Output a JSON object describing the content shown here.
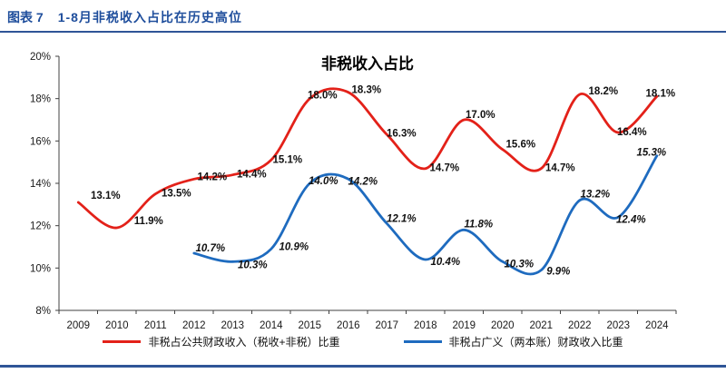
{
  "header": {
    "figure_label": "图表 7",
    "title": "1-8月非税收入占比在历史高位"
  },
  "colors": {
    "header_blue": "#1f4e9c",
    "divider_blue": "#2f5597",
    "red_series": "#e32119",
    "blue_series": "#1e6bbf",
    "axis": "#404040"
  },
  "chart_data": {
    "type": "line",
    "title": "非税收入占比",
    "x": [
      2009,
      2010,
      2011,
      2012,
      2013,
      2014,
      2015,
      2016,
      2017,
      2018,
      2019,
      2020,
      2021,
      2022,
      2023,
      2024
    ],
    "ylim": [
      8,
      20
    ],
    "ytick_step": 2,
    "ytick_suffix": "%",
    "grid": false,
    "legend_position": "bottom",
    "series": [
      {
        "name": "非税占公共财政收入（税收+非税）比重",
        "color": "#e32119",
        "start_x": 2009,
        "values": [
          13.1,
          11.9,
          13.5,
          14.2,
          14.4,
          15.1,
          18.0,
          18.3,
          16.3,
          14.7,
          17.0,
          15.6,
          14.7,
          18.2,
          16.4,
          18.1
        ],
        "labels": [
          "13.1%",
          "11.9%",
          "13.5%",
          "14.2%",
          "14.4%",
          "15.1%",
          "18.0%",
          "18.3%",
          "16.3%",
          "14.7%",
          "17.0%",
          "15.6%",
          "14.7%",
          "18.2%",
          "16.4%",
          "18.1%"
        ],
        "label_style": "normal",
        "label_offsets": [
          [
            30,
            -4
          ],
          [
            35,
            -4
          ],
          [
            23,
            3
          ],
          [
            20,
            1
          ],
          [
            21,
            3
          ],
          [
            18,
            3
          ],
          [
            14,
            0
          ],
          [
            20,
            1
          ],
          [
            16,
            2
          ],
          [
            21,
            3
          ],
          [
            18,
            -2
          ],
          [
            20,
            -2
          ],
          [
            21,
            3
          ],
          [
            26,
            0
          ],
          [
            15,
            3
          ],
          [
            4,
            0
          ]
        ]
      },
      {
        "name": "非税占广义（两本账）财政收入比重",
        "color": "#1e6bbf",
        "start_x": 2012,
        "values": [
          10.7,
          10.3,
          10.9,
          14.0,
          14.2,
          12.1,
          10.4,
          11.8,
          10.3,
          9.9,
          13.2,
          12.4,
          15.3
        ],
        "labels": [
          "10.7%",
          "10.3%",
          "10.9%",
          "14.0%",
          "14.2%",
          "12.1%",
          "10.4%",
          "11.8%",
          "10.3%",
          "9.9%",
          "13.2%",
          "12.4%",
          "15.3%"
        ],
        "label_style": "italic",
        "label_offsets": [
          [
            18,
            -2
          ],
          [
            22,
            7
          ],
          [
            25,
            1
          ],
          [
            15,
            1
          ],
          [
            16,
            6
          ],
          [
            16,
            -2
          ],
          [
            22,
            6
          ],
          [
            16,
            -3
          ],
          [
            18,
            6
          ],
          [
            19,
            5
          ],
          [
            17,
            -3
          ],
          [
            14,
            6
          ],
          [
            -6,
            0
          ]
        ]
      }
    ]
  }
}
